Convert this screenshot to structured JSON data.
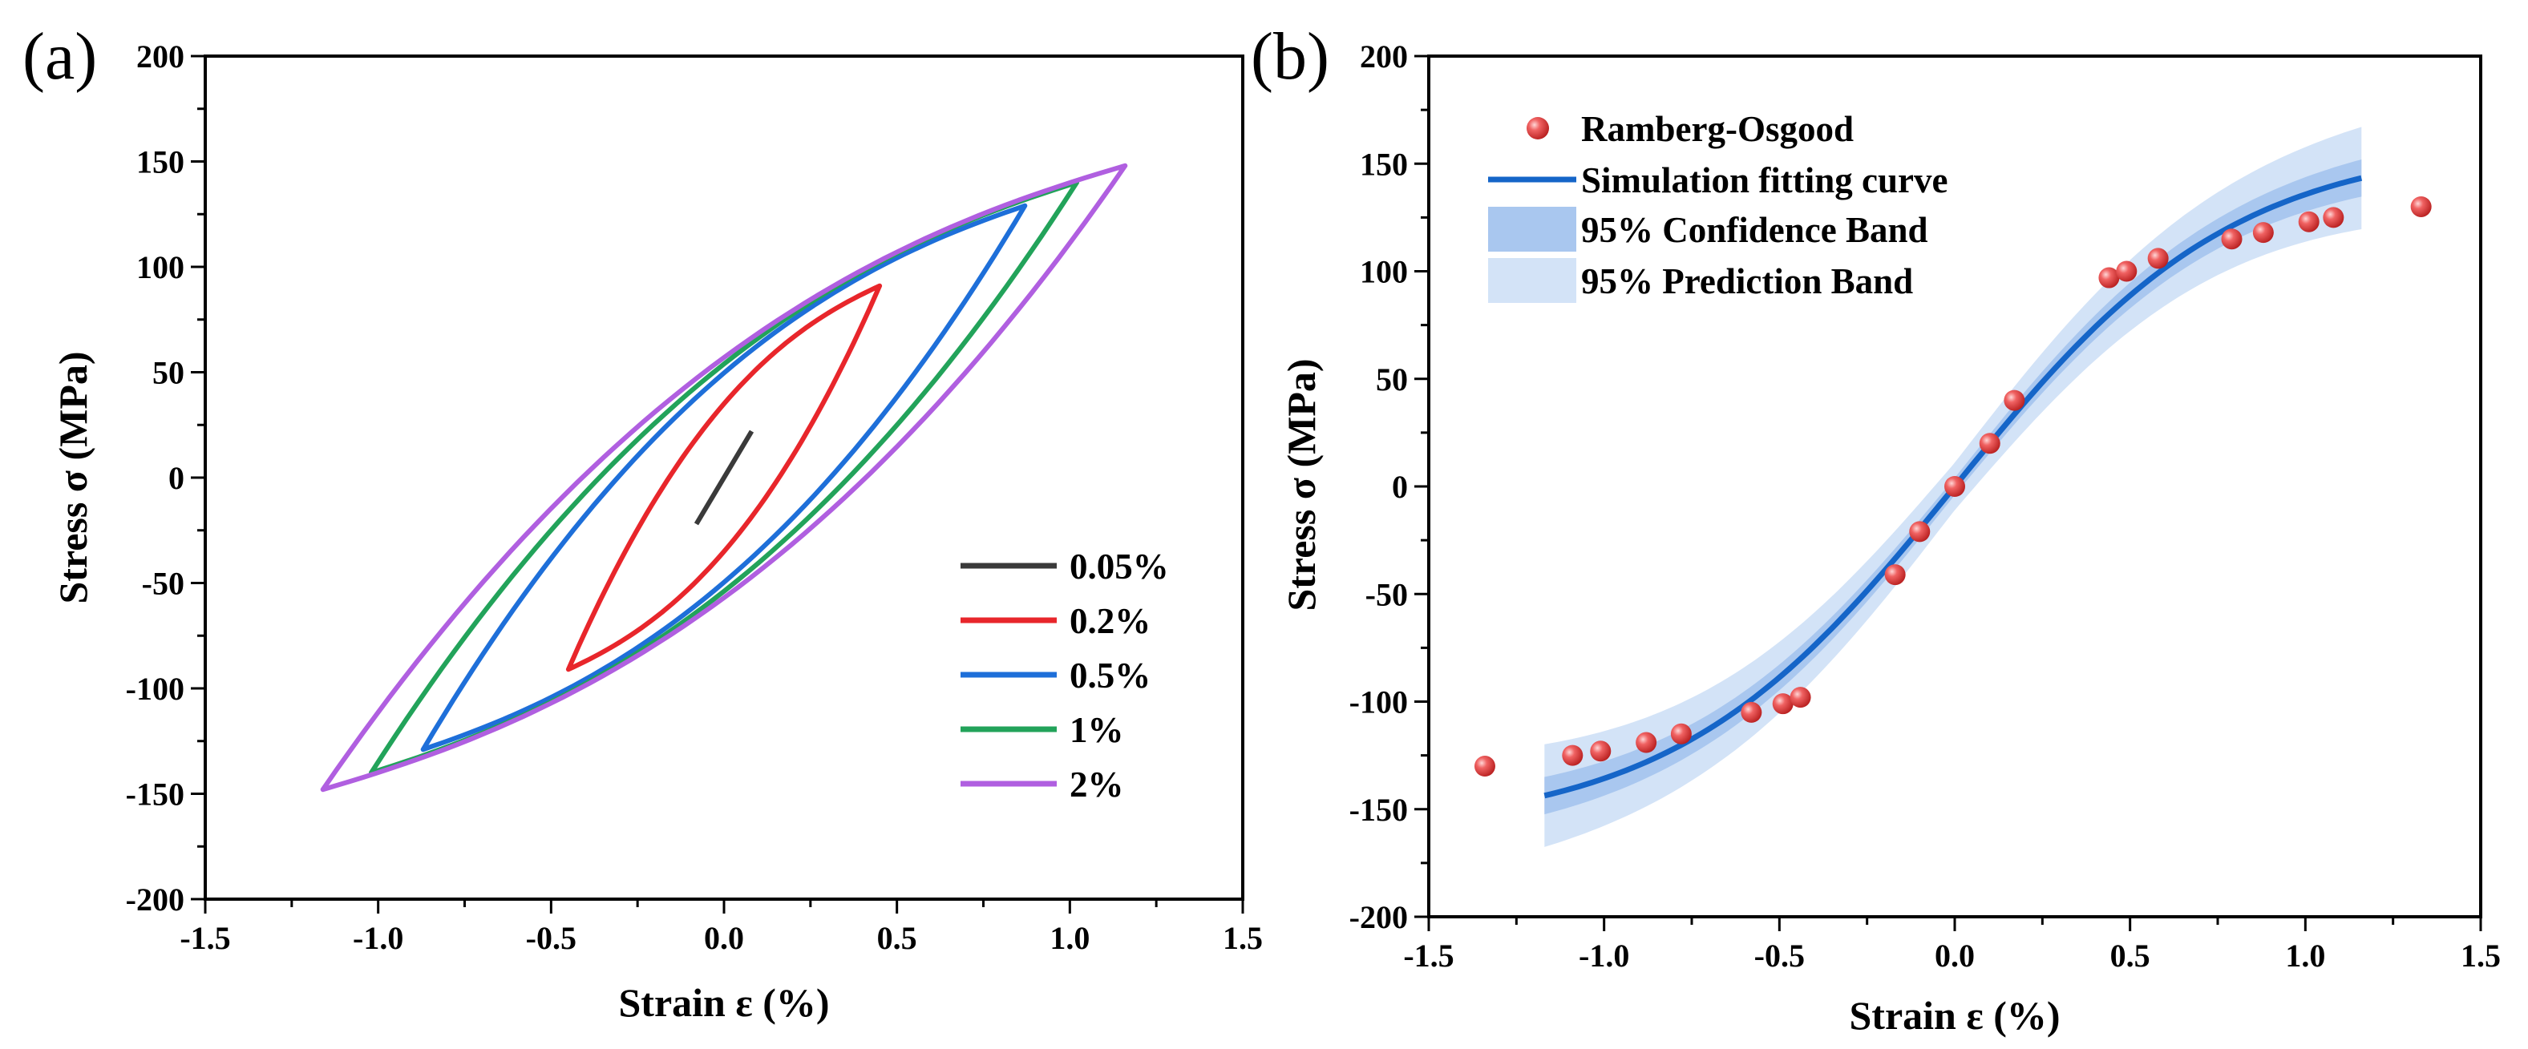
{
  "figure": {
    "panels": [
      "(a)",
      "(b)"
    ]
  },
  "chart_data": [
    {
      "panel": "(a)",
      "type": "line",
      "title": "",
      "xlabel": "Strain ε (%)",
      "ylabel": "Stress σ (MPa)",
      "xlim": [
        -1.5,
        1.5
      ],
      "ylim": [
        -200,
        200
      ],
      "xticks": [
        -1.5,
        -1.0,
        -0.5,
        0.0,
        0.5,
        1.0,
        1.5
      ],
      "xtick_labels": [
        "-1.5",
        "-1.0",
        "-0.5",
        "0.0",
        "0.5",
        "1.0",
        "1.5"
      ],
      "yticks": [
        -200,
        -150,
        -100,
        -50,
        0,
        50,
        100,
        150,
        200
      ],
      "ytick_labels": [
        "-200",
        "-150",
        "-100",
        "-50",
        "0",
        "50",
        "100",
        "150",
        "200"
      ],
      "legend_position": "bottom-right",
      "series": [
        {
          "name": "0.05%",
          "color": "#3a3a3a",
          "tip_strain": 0.08,
          "tip_stress": 22,
          "closed": false
        },
        {
          "name": "0.2%",
          "color": "#e8262b",
          "tip_strain": 0.45,
          "tip_stress": 91,
          "closed": true
        },
        {
          "name": "0.5%",
          "color": "#1e6fd9",
          "tip_strain": 0.87,
          "tip_stress": 129,
          "closed": true
        },
        {
          "name": "1%",
          "color": "#22a35a",
          "tip_strain": 1.02,
          "tip_stress": 140,
          "closed": true
        },
        {
          "name": "2%",
          "color": "#b05fe0",
          "tip_strain": 1.16,
          "tip_stress": 148,
          "closed": true
        }
      ]
    },
    {
      "panel": "(b)",
      "type": "scatter",
      "title": "",
      "xlabel": "Strain ε (%)",
      "ylabel": "Stress σ (MPa)",
      "xlim": [
        -1.5,
        1.5
      ],
      "ylim": [
        -200,
        200
      ],
      "xticks": [
        -1.5,
        -1.0,
        -0.5,
        0.0,
        0.5,
        1.0,
        1.5
      ],
      "xtick_labels": [
        "-1.5",
        "-1.0",
        "-0.5",
        "0.0",
        "0.5",
        "1.0",
        "1.5"
      ],
      "yticks": [
        -200,
        -150,
        -100,
        -50,
        0,
        50,
        100,
        150,
        200
      ],
      "ytick_labels": [
        "-200",
        "-150",
        "-100",
        "-50",
        "0",
        "50",
        "100",
        "150",
        "200"
      ],
      "legend_position": "top-left",
      "legend": {
        "points": "Ramberg-Osgood",
        "curve": "Simulation fitting curve",
        "confidence": "95% Confidence Band",
        "prediction": "95% Prediction Band"
      },
      "colors": {
        "points": "#e84545",
        "curve": "#1565c8",
        "confidence": "#a9c7ef",
        "prediction": "#d3e3f7"
      },
      "fit_curve": {
        "amplitude": 160,
        "steepness": 2.25,
        "x_range": [
          -1.17,
          1.16
        ],
        "confidence_halfwidth": 4,
        "prediction_halfwidth": 11
      },
      "points": [
        {
          "x": -1.34,
          "y": -130
        },
        {
          "x": -1.09,
          "y": -125
        },
        {
          "x": -1.01,
          "y": -123
        },
        {
          "x": -0.88,
          "y": -119
        },
        {
          "x": -0.78,
          "y": -115
        },
        {
          "x": -0.58,
          "y": -105
        },
        {
          "x": -0.49,
          "y": -101
        },
        {
          "x": -0.44,
          "y": -98
        },
        {
          "x": -0.17,
          "y": -41
        },
        {
          "x": -0.1,
          "y": -21
        },
        {
          "x": 0.0,
          "y": 0
        },
        {
          "x": 0.1,
          "y": 20
        },
        {
          "x": 0.17,
          "y": 40
        },
        {
          "x": 0.44,
          "y": 97
        },
        {
          "x": 0.49,
          "y": 100
        },
        {
          "x": 0.58,
          "y": 106
        },
        {
          "x": 0.79,
          "y": 115
        },
        {
          "x": 0.88,
          "y": 118
        },
        {
          "x": 1.01,
          "y": 123
        },
        {
          "x": 1.08,
          "y": 125
        },
        {
          "x": 1.33,
          "y": 130
        }
      ]
    }
  ]
}
